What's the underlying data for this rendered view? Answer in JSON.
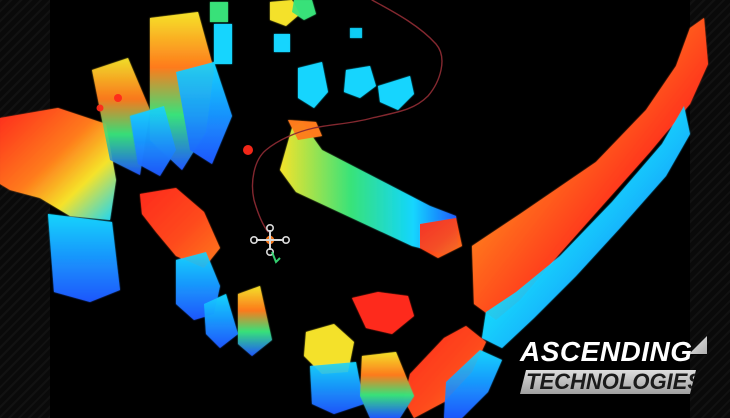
{
  "logo": {
    "line1": "ASCENDING",
    "line2": "TECHNOLOGIES"
  },
  "colors": {
    "background": "#000000",
    "outer_bg": "#0a0a0a",
    "red": "#ff2a1a",
    "orange": "#ff7b1c",
    "yellow": "#f6e32a",
    "green": "#38e37a",
    "cyan": "#12d6ff",
    "blue": "#1f57ff",
    "path": "#8a2a32"
  }
}
